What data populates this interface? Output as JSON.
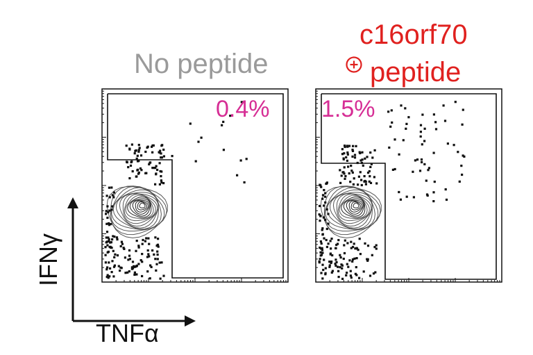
{
  "chart_data": {
    "type": "scatter",
    "xlabel": "TNFα",
    "ylabel": "IFNγ",
    "scale": "log (flow cytometry contour + dot plot)",
    "panels": [
      {
        "title_lines": [
          "No peptide"
        ],
        "title_color": "#9a9a9a",
        "gate_label": "0.4%",
        "gate_value_percent": 0.4,
        "population_center_log": {
          "x": 1.4,
          "y": 1.2
        }
      },
      {
        "title_lines": [
          "c16orf70",
          "peptide"
        ],
        "title_prefix_symbol": "⊕",
        "title_color": "#e0211f",
        "gate_label": "1.5%",
        "gate_value_percent": 1.5,
        "population_center_log": {
          "x": 1.4,
          "y": 1.2
        }
      }
    ]
  },
  "colors": {
    "percent_label": "#d62e95",
    "title_negative": "#9a9a9a",
    "title_positive": "#e0211f",
    "axes": "#111111"
  }
}
